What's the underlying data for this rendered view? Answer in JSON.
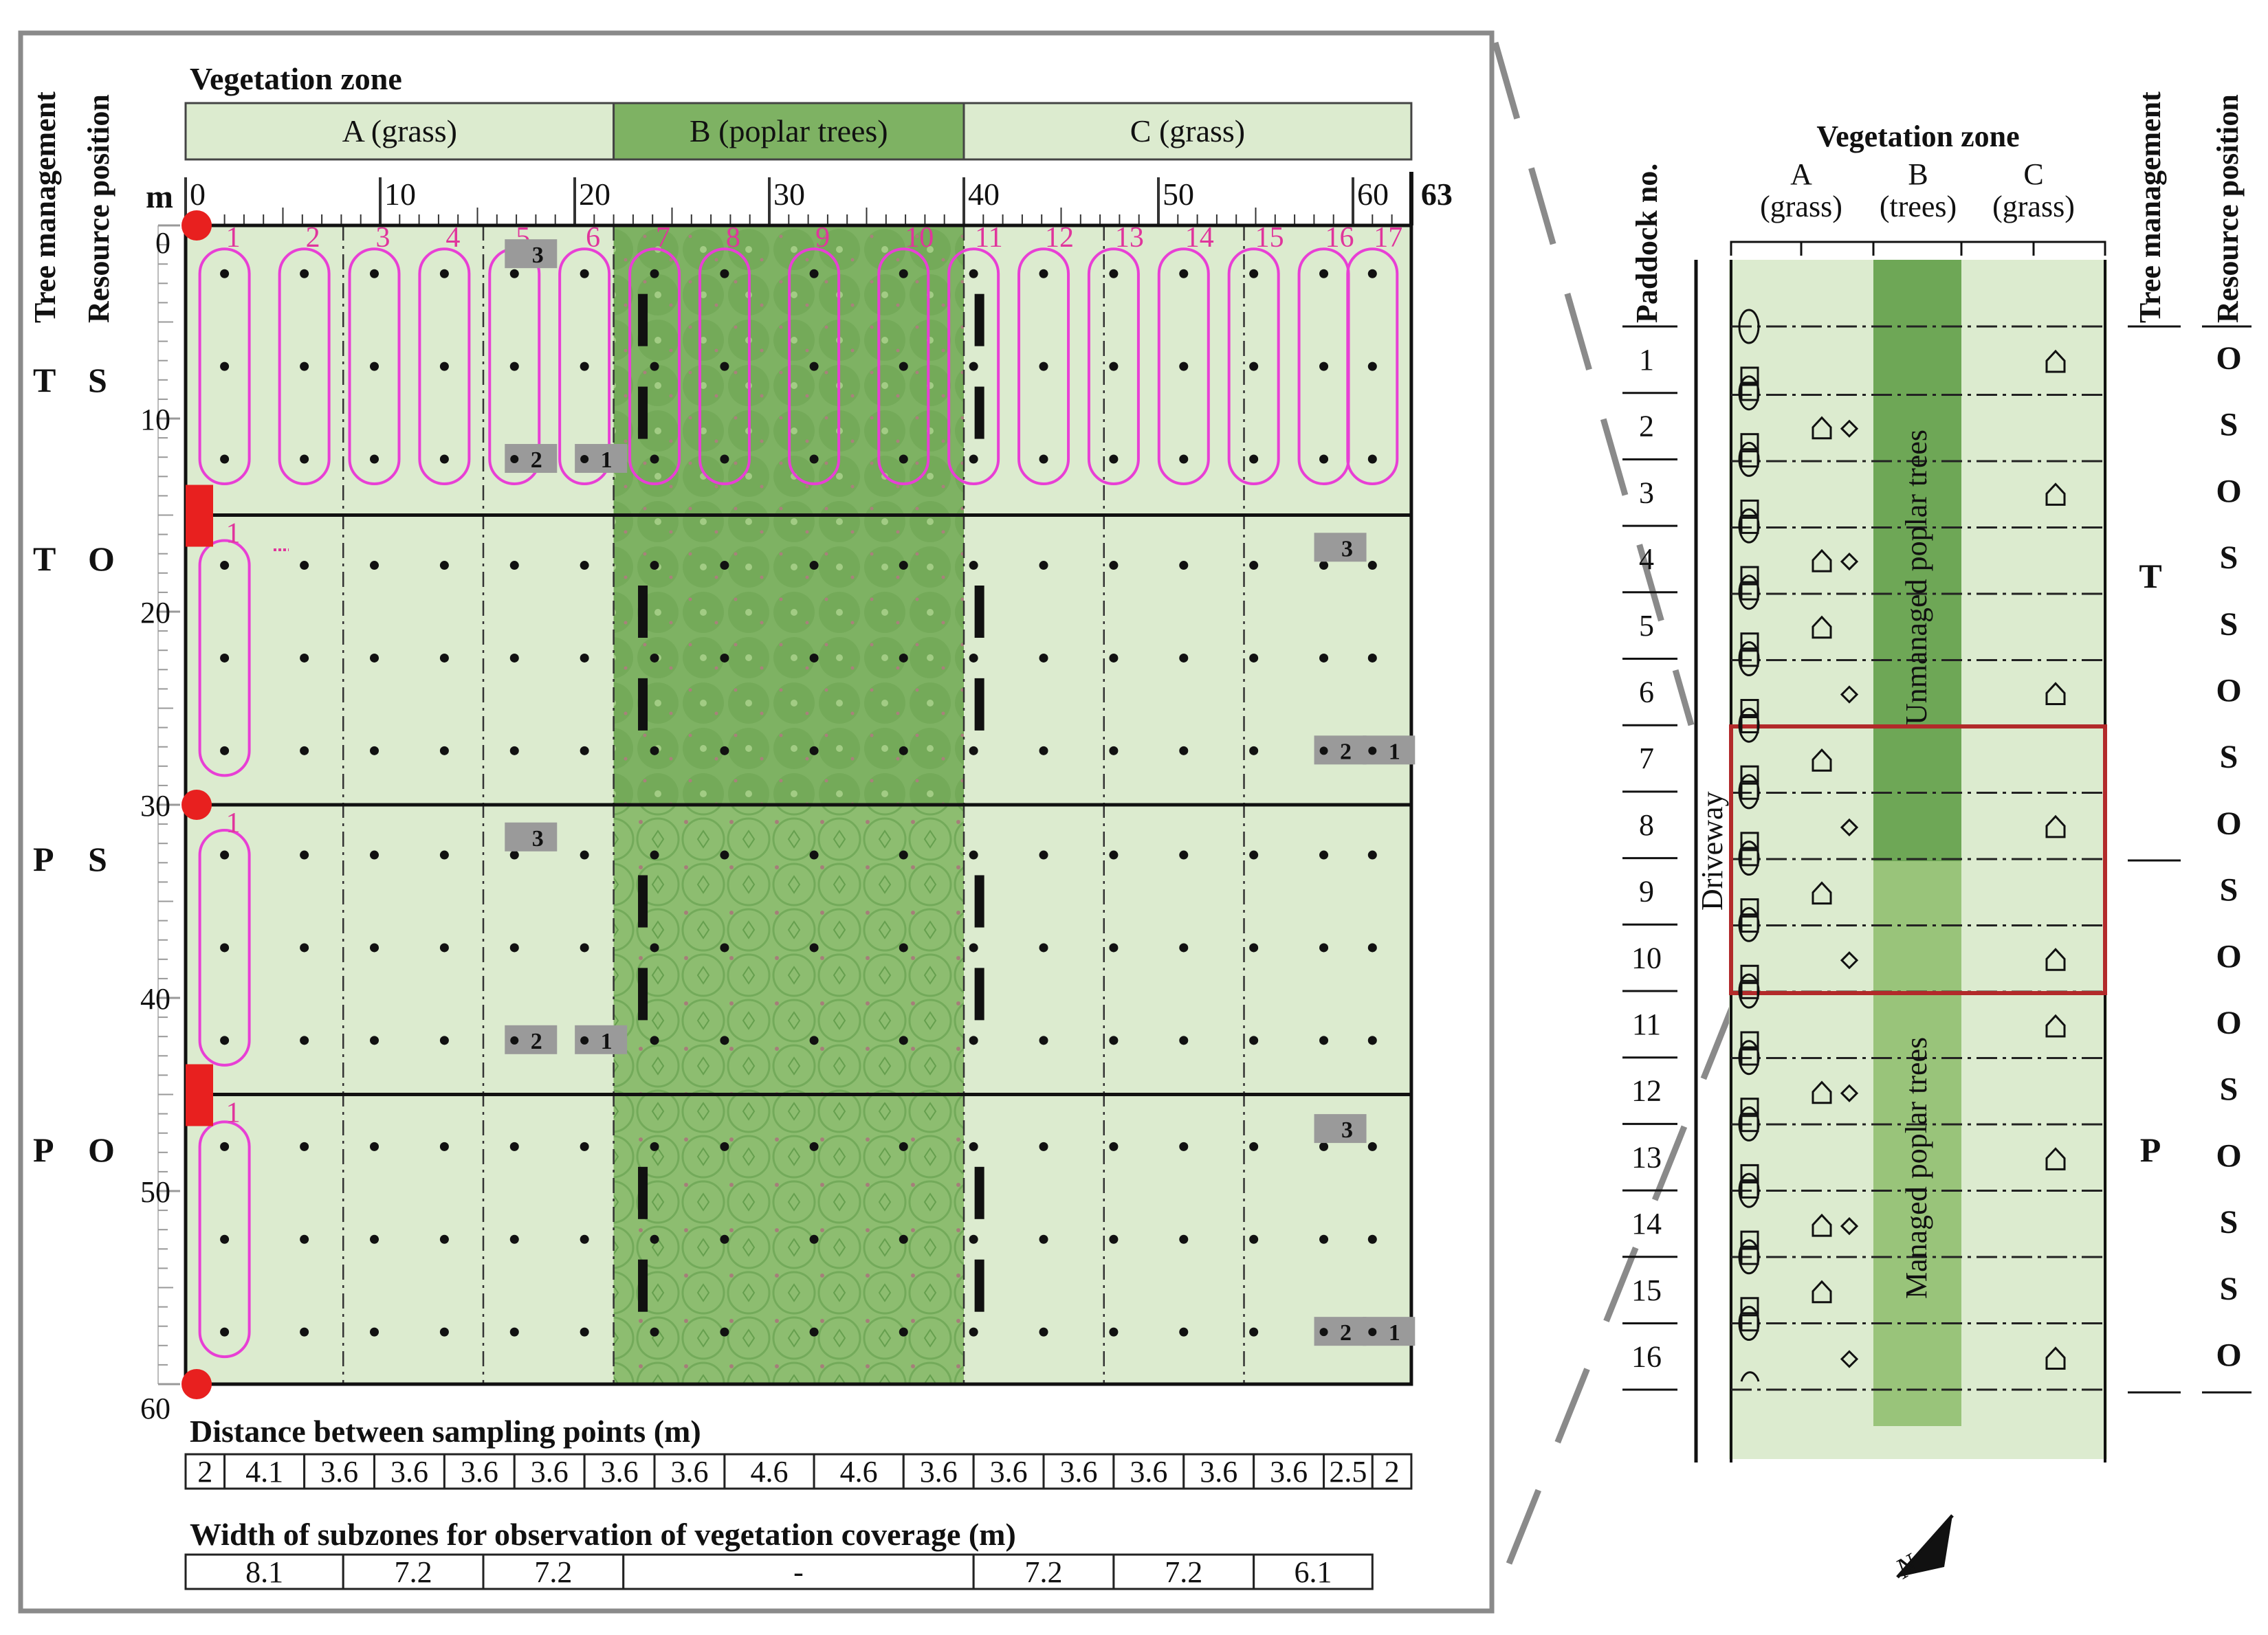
{
  "left_panel": {
    "title_vegetation_zone": "Vegetation zone",
    "zones": [
      {
        "label": "A (grass)",
        "from_m": 0,
        "to_m": 22,
        "color": "#dcebcf"
      },
      {
        "label": "B (poplar trees)",
        "from_m": 22,
        "to_m": 40,
        "color": "#7eb263"
      },
      {
        "label": "C (grass)",
        "from_m": 40,
        "to_m": 63,
        "color": "#dcebcf"
      }
    ],
    "side_headers": {
      "tree_management": "Tree management",
      "resource_position": "Resource position"
    },
    "x_axis": {
      "unit": "m",
      "ticks": [
        "0",
        "10",
        "20",
        "30",
        "40",
        "50",
        "60"
      ],
      "tick_values": [
        0,
        10,
        20,
        30,
        40,
        50,
        60
      ],
      "end_label": "63",
      "end_value": 63
    },
    "y_axis": {
      "ticks": [
        "0",
        "10",
        "20",
        "30",
        "40",
        "50",
        "60"
      ],
      "tick_values": [
        0,
        10,
        20,
        30,
        40,
        50,
        60
      ]
    },
    "column_labels": [
      "1",
      "2",
      "3",
      "4",
      "5",
      "6",
      "7",
      "8",
      "9",
      "10",
      "11",
      "12",
      "13",
      "14",
      "15",
      "16",
      "17"
    ],
    "column_positions_m": [
      2,
      6.1,
      9.7,
      13.3,
      16.9,
      20.5,
      24.1,
      27.7,
      32.3,
      36.9,
      40.5,
      44.1,
      47.7,
      51.3,
      54.9,
      58.5,
      61
    ],
    "rows": [
      {
        "management": "T",
        "resource": "S",
        "from_m": 0,
        "to_m": 15,
        "sampling_depths_m": [
          2.5,
          7.3,
          12.1
        ]
      },
      {
        "management": "T",
        "resource": "O",
        "from_m": 15,
        "to_m": 30,
        "sampling_depths_m": [
          17.6,
          22.4,
          27.2
        ]
      },
      {
        "management": "P",
        "resource": "S",
        "from_m": 30,
        "to_m": 45,
        "sampling_depths_m": [
          32.6,
          37.4,
          42.2
        ]
      },
      {
        "management": "P",
        "resource": "O",
        "from_m": 45,
        "to_m": 60,
        "sampling_depths_m": [
          47.7,
          52.5,
          57.3
        ]
      }
    ],
    "markers": [
      {
        "label": "3",
        "row": 0,
        "col": 4,
        "depth": 1.5
      },
      {
        "label": "2",
        "row": 0,
        "col": 4,
        "depth": 12.1
      },
      {
        "label": "1",
        "row": 0,
        "col": 5,
        "depth": 12.1
      },
      {
        "label": "3",
        "row": 1,
        "col": 15,
        "depth": 16.7
      },
      {
        "label": "2",
        "row": 1,
        "col": 15,
        "depth": 27.2
      },
      {
        "label": "1",
        "row": 1,
        "col": 16,
        "depth": 27.2
      },
      {
        "label": "3",
        "row": 2,
        "col": 4,
        "depth": 31.7
      },
      {
        "label": "2",
        "row": 2,
        "col": 4,
        "depth": 42.2
      },
      {
        "label": "1",
        "row": 2,
        "col": 5,
        "depth": 42.2
      },
      {
        "label": "3",
        "row": 3,
        "col": 15,
        "depth": 46.8
      },
      {
        "label": "2",
        "row": 3,
        "col": 15,
        "depth": 57.3
      },
      {
        "label": "1",
        "row": 3,
        "col": 16,
        "depth": 57.3
      }
    ],
    "distance_title": "Distance between sampling points (m)",
    "distances": [
      "2",
      "4.1",
      "3.6",
      "3.6",
      "3.6",
      "3.6",
      "3.6",
      "3.6",
      "4.6",
      "4.6",
      "3.6",
      "3.6",
      "3.6",
      "3.6",
      "3.6",
      "3.6",
      "2.5",
      "2"
    ],
    "distance_values": [
      2,
      4.1,
      3.6,
      3.6,
      3.6,
      3.6,
      3.6,
      3.6,
      4.6,
      4.6,
      3.6,
      3.6,
      3.6,
      3.6,
      3.6,
      3.6,
      2.5,
      2
    ],
    "width_title": "Width of subzones for observation of vegetation coverage (m)",
    "widths": [
      "8.1",
      "7.2",
      "7.2",
      "-",
      "7.2",
      "7.2",
      "6.1"
    ],
    "width_values": [
      8.1,
      7.2,
      7.2,
      18,
      7.2,
      7.2,
      6.1
    ],
    "colors": {
      "grass": "#dcebcf",
      "trees": "#7eb263",
      "loop": "#e83fd5",
      "number": "#e0359c",
      "red": "#e8201f",
      "marker": "#9a9a9a"
    }
  },
  "right_panel": {
    "title_vegetation_zone": "Vegetation zone",
    "zone_headers": [
      {
        "letter": "A",
        "sub": "(grass)"
      },
      {
        "letter": "B",
        "sub": "(trees)"
      },
      {
        "letter": "C",
        "sub": "(grass)"
      }
    ],
    "header_paddock": "Paddock no.",
    "header_tree_management": "Tree management",
    "header_resource_position": "Resource position",
    "paddocks": [
      "1",
      "2",
      "3",
      "4",
      "5",
      "6",
      "7",
      "8",
      "9",
      "10",
      "11",
      "12",
      "13",
      "14",
      "15",
      "16"
    ],
    "resource_positions": [
      "O",
      "S",
      "O",
      "S",
      "S",
      "O",
      "S",
      "O",
      "S",
      "O",
      "O",
      "S",
      "O",
      "S",
      "S",
      "O"
    ],
    "management_groups": [
      {
        "label": "T",
        "from": 1,
        "to": 8
      },
      {
        "label": "P",
        "from": 9,
        "to": 16
      }
    ],
    "tree_labels": [
      "Unmanaged poplar trees",
      "Managed poplar trees"
    ],
    "driveway": "Driveway",
    "north_label": "N",
    "highlight": {
      "from": 7,
      "to": 10,
      "color": "#b22a2a"
    },
    "colors": {
      "grass": "#dcebcf",
      "unmanaged": "#6ea756",
      "managed": "#99c47a"
    }
  }
}
